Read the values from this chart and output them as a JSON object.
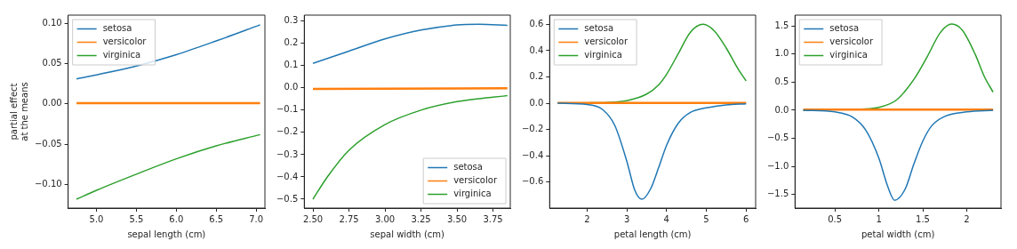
{
  "chart_data": [
    {
      "type": "line",
      "xlabel": "sepal length (cm)",
      "ylabel": "partial effect\nat the means",
      "legend": "top left",
      "grid": false,
      "xlim": [
        4.645,
        7.11
      ],
      "xticks": [
        {
          "value": 5,
          "label": "5.0"
        },
        {
          "value": 5.5,
          "label": "5.5"
        },
        {
          "value": 6,
          "label": "6.0"
        },
        {
          "value": 6.5,
          "label": "6.5"
        },
        {
          "value": 7,
          "label": "7.0"
        }
      ],
      "ylim": [
        -0.129,
        0.11
      ],
      "yticks": [
        {
          "value": -0.1,
          "label": "−0.10"
        },
        {
          "value": -0.05,
          "label": "−0.05"
        },
        {
          "value": 0,
          "label": "0.00"
        },
        {
          "value": 0.05,
          "label": "0.05"
        },
        {
          "value": 0.1,
          "label": "0.10"
        }
      ],
      "series": [
        {
          "name": "setosa",
          "color": "#1f77b4",
          "x": [
            4.75,
            5.0,
            5.5,
            6.0,
            6.5,
            7.05
          ],
          "values": [
            0.031,
            0.036,
            0.047,
            0.061,
            0.078,
            0.098
          ]
        },
        {
          "name": "versicolor",
          "color": "#ff7f0e",
          "x": [
            4.75,
            7.05
          ],
          "values": [
            0.001,
            0.001
          ]
        },
        {
          "name": "virginica",
          "color": "#2ca02c",
          "x": [
            4.75,
            5.0,
            5.5,
            6.0,
            6.5,
            7.05
          ],
          "values": [
            -0.118,
            -0.107,
            -0.087,
            -0.068,
            -0.052,
            -0.038
          ]
        }
      ]
    },
    {
      "type": "line",
      "xlabel": "sepal width (cm)",
      "legend": "bottom right",
      "grid": false,
      "xlim": [
        2.44,
        3.87
      ],
      "xticks": [
        {
          "value": 2.5,
          "label": "2.50"
        },
        {
          "value": 2.75,
          "label": "2.75"
        },
        {
          "value": 3,
          "label": "3.00"
        },
        {
          "value": 3.25,
          "label": "3.25"
        },
        {
          "value": 3.5,
          "label": "3.50"
        },
        {
          "value": 3.75,
          "label": "3.75"
        }
      ],
      "ylim": [
        -0.54,
        0.327
      ],
      "yticks": [
        {
          "value": -0.5,
          "label": "−0.5"
        },
        {
          "value": -0.4,
          "label": "−0.4"
        },
        {
          "value": -0.3,
          "label": "−0.3"
        },
        {
          "value": -0.2,
          "label": "−0.2"
        },
        {
          "value": -0.1,
          "label": "−0.1"
        },
        {
          "value": 0,
          "label": "0.0"
        },
        {
          "value": 0.1,
          "label": "0.1"
        },
        {
          "value": 0.2,
          "label": "0.2"
        },
        {
          "value": 0.3,
          "label": "0.3"
        }
      ],
      "series": [
        {
          "name": "setosa",
          "color": "#1f77b4",
          "x": [
            2.5,
            2.75,
            3.0,
            3.25,
            3.5,
            3.65,
            3.85
          ],
          "values": [
            0.11,
            0.165,
            0.22,
            0.26,
            0.283,
            0.286,
            0.281
          ]
        },
        {
          "name": "versicolor",
          "color": "#ff7f0e",
          "x": [
            2.5,
            3.85
          ],
          "values": [
            -0.005,
            -0.002
          ]
        },
        {
          "name": "virginica",
          "color": "#2ca02c",
          "x": [
            2.5,
            2.6,
            2.75,
            3.0,
            3.25,
            3.5,
            3.75,
            3.85
          ],
          "values": [
            -0.5,
            -0.4,
            -0.28,
            -0.165,
            -0.1,
            -0.062,
            -0.042,
            -0.035
          ]
        }
      ]
    },
    {
      "type": "line",
      "xlabel": "petal length (cm)",
      "legend": "top left",
      "grid": false,
      "xlim": [
        1.06,
        6.24
      ],
      "xticks": [
        2,
        3,
        4,
        5,
        6
      ],
      "ylim": [
        -0.797,
        0.67
      ],
      "yticks": [
        {
          "value": -0.6,
          "label": "−0.6"
        },
        {
          "value": -0.4,
          "label": "−0.4"
        },
        {
          "value": -0.2,
          "label": "−0.2"
        },
        {
          "value": 0,
          "label": "0.0"
        },
        {
          "value": 0.2,
          "label": "0.2"
        },
        {
          "value": 0.4,
          "label": "0.4"
        },
        {
          "value": 0.6,
          "label": "0.6"
        }
      ],
      "series": [
        {
          "name": "setosa",
          "color": "#1f77b4",
          "x": [
            1.26,
            2.0,
            2.4,
            2.7,
            3.0,
            3.2,
            3.38,
            3.6,
            3.8,
            4.0,
            4.3,
            4.6,
            5.0,
            5.5,
            6.0
          ],
          "values": [
            0,
            -0.01,
            -0.05,
            -0.17,
            -0.44,
            -0.66,
            -0.73,
            -0.65,
            -0.49,
            -0.32,
            -0.15,
            -0.07,
            -0.035,
            -0.012,
            -0.004
          ]
        },
        {
          "name": "versicolor",
          "color": "#ff7f0e",
          "x": [
            1.26,
            6.0
          ],
          "values": [
            0.002,
            0.002
          ]
        },
        {
          "name": "virginica",
          "color": "#2ca02c",
          "x": [
            1.26,
            2.0,
            2.5,
            3.0,
            3.5,
            3.8,
            4.0,
            4.3,
            4.6,
            4.92,
            5.2,
            5.5,
            5.8,
            6.0
          ],
          "values": [
            0.002,
            0.003,
            0.006,
            0.02,
            0.07,
            0.14,
            0.22,
            0.38,
            0.54,
            0.6,
            0.55,
            0.42,
            0.26,
            0.17
          ]
        }
      ]
    },
    {
      "type": "line",
      "xlabel": "petal width (cm)",
      "legend": "top left",
      "grid": false,
      "xlim": [
        0.046,
        2.39
      ],
      "xticks": [
        0.5,
        1,
        1.5,
        2
      ],
      "ylim": [
        -1.74,
        1.69
      ],
      "yticks": [
        {
          "value": -1.5,
          "label": "−1.5"
        },
        {
          "value": -1,
          "label": "−1.0"
        },
        {
          "value": -0.5,
          "label": "−0.5"
        },
        {
          "value": 0,
          "label": "0.0"
        },
        {
          "value": 0.5,
          "label": "0.5"
        },
        {
          "value": 1,
          "label": "1.0"
        },
        {
          "value": 1.5,
          "label": "1.5"
        }
      ],
      "series": [
        {
          "name": "setosa",
          "color": "#1f77b4",
          "x": [
            0.14,
            0.5,
            0.7,
            0.85,
            1.0,
            1.1,
            1.18,
            1.3,
            1.4,
            1.5,
            1.6,
            1.75,
            2.0,
            2.3
          ],
          "values": [
            0,
            -0.03,
            -0.12,
            -0.35,
            -0.85,
            -1.35,
            -1.6,
            -1.4,
            -0.95,
            -0.55,
            -0.28,
            -0.11,
            -0.03,
            0
          ]
        },
        {
          "name": "versicolor",
          "color": "#ff7f0e",
          "x": [
            0.14,
            2.3
          ],
          "values": [
            0.01,
            0.01
          ]
        },
        {
          "name": "virginica",
          "color": "#2ca02c",
          "x": [
            0.14,
            0.5,
            0.8,
            1.0,
            1.2,
            1.4,
            1.55,
            1.7,
            1.83,
            1.95,
            2.1,
            2.2,
            2.3
          ],
          "values": [
            0,
            0.01,
            0.02,
            0.05,
            0.18,
            0.55,
            0.95,
            1.38,
            1.53,
            1.42,
            0.98,
            0.6,
            0.32
          ]
        }
      ]
    }
  ]
}
